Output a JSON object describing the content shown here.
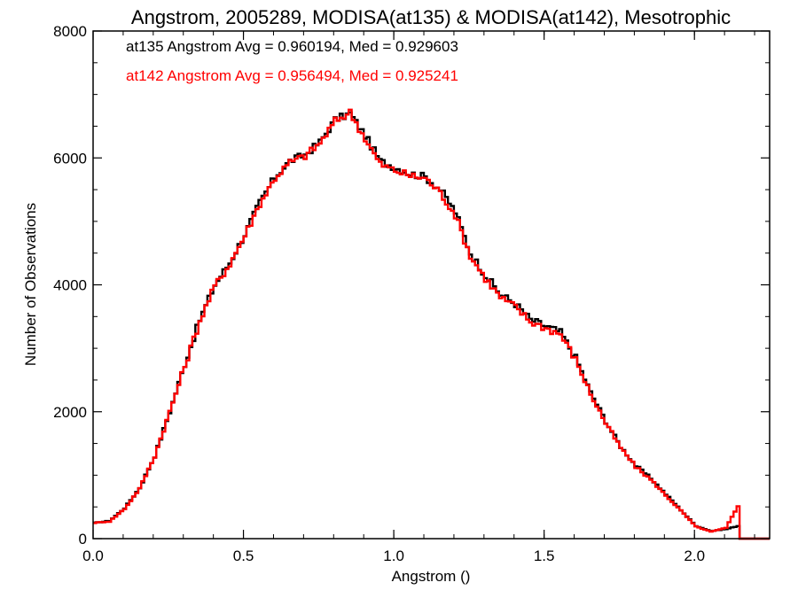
{
  "chart_data": {
    "type": "line",
    "title": "Angstrom, 2005289, MODISA(at135) & MODISA(at142), Mesotrophic",
    "xlabel": "Angstrom ()",
    "ylabel": "Number of Observations",
    "xlim": [
      0.0,
      2.25
    ],
    "ylim": [
      0,
      8000
    ],
    "x_ticks": [
      0.0,
      0.5,
      1.0,
      1.5,
      2.0
    ],
    "x_tick_labels": [
      "0.0",
      "0.5",
      "1.0",
      "1.5",
      "2.0"
    ],
    "y_ticks": [
      0,
      2000,
      4000,
      6000,
      8000
    ],
    "y_tick_labels": [
      "0",
      "2000",
      "4000",
      "6000",
      "8000"
    ],
    "step_style": "histogram",
    "bin_width": 0.01,
    "annotations": [
      "at135 Angstrom Avg = 0.960194, Med = 0.929603",
      "at142 Angstrom Avg = 0.956494, Med = 0.925241"
    ],
    "series": [
      {
        "color": "#000000",
        "x": [
          0.0,
          0.05,
          0.1,
          0.15,
          0.2,
          0.25,
          0.3,
          0.35,
          0.4,
          0.45,
          0.5,
          0.55,
          0.6,
          0.65,
          0.7,
          0.75,
          0.8,
          0.85,
          0.9,
          0.95,
          1.0,
          1.05,
          1.1,
          1.15,
          1.2,
          1.25,
          1.3,
          1.35,
          1.4,
          1.45,
          1.5,
          1.55,
          1.6,
          1.65,
          1.7,
          1.75,
          1.8,
          1.85,
          1.9,
          1.95,
          2.0,
          2.05,
          2.1,
          2.14,
          2.15,
          2.25
        ],
        "values": [
          250,
          280,
          480,
          800,
          1300,
          2000,
          2750,
          3450,
          4000,
          4350,
          4800,
          5300,
          5700,
          5950,
          6050,
          6250,
          6600,
          6700,
          6350,
          5950,
          5850,
          5750,
          5700,
          5500,
          5150,
          4500,
          4150,
          3850,
          3700,
          3450,
          3350,
          3250,
          2850,
          2300,
          1850,
          1450,
          1150,
          950,
          700,
          450,
          200,
          120,
          150,
          200,
          0,
          0
        ]
      },
      {
        "color": "#ff0000",
        "x": [
          0.0,
          0.05,
          0.1,
          0.15,
          0.2,
          0.25,
          0.3,
          0.35,
          0.4,
          0.45,
          0.5,
          0.55,
          0.6,
          0.65,
          0.7,
          0.75,
          0.8,
          0.85,
          0.9,
          0.95,
          1.0,
          1.05,
          1.1,
          1.15,
          1.2,
          1.25,
          1.3,
          1.35,
          1.4,
          1.45,
          1.5,
          1.55,
          1.6,
          1.65,
          1.7,
          1.75,
          1.8,
          1.85,
          1.9,
          1.95,
          2.0,
          2.05,
          2.1,
          2.14,
          2.15,
          2.25
        ],
        "values": [
          250,
          270,
          470,
          790,
          1300,
          2000,
          2720,
          3430,
          3980,
          4330,
          4780,
          5280,
          5680,
          5930,
          6030,
          6230,
          6580,
          6720,
          6300,
          5900,
          5800,
          5720,
          5680,
          5450,
          5100,
          4450,
          4100,
          3800,
          3650,
          3420,
          3320,
          3220,
          2820,
          2280,
          1820,
          1430,
          1130,
          930,
          680,
          440,
          190,
          110,
          170,
          520,
          0,
          0
        ]
      }
    ]
  }
}
